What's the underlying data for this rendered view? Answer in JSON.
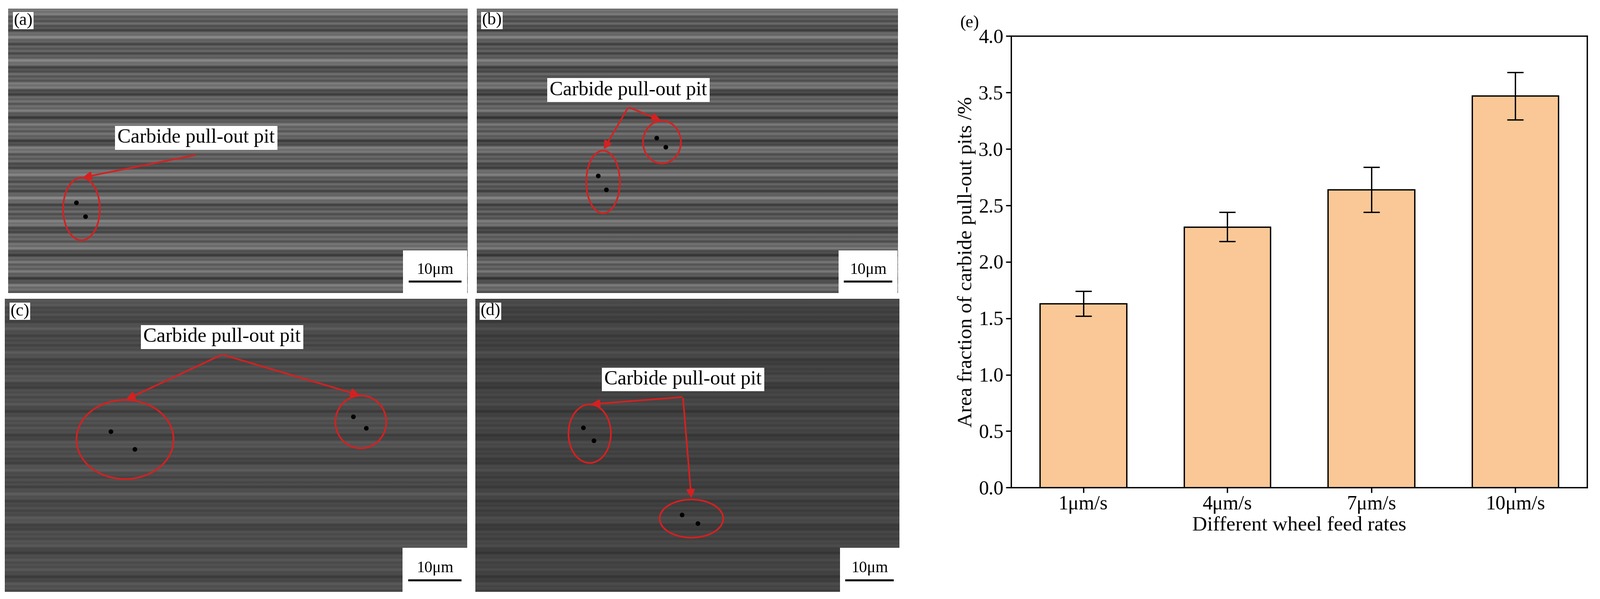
{
  "images": [
    {
      "label": "(a)",
      "annotation": "Carbide pull-out pit",
      "scale_bar": "10μm"
    },
    {
      "label": "(b)",
      "annotation": "Carbide pull-out pit",
      "scale_bar": "10μm"
    },
    {
      "label": "(c)",
      "annotation": "Carbide pull-out pit",
      "scale_bar": "10μm"
    },
    {
      "label": "(d)",
      "annotation": "Carbide pull-out pit",
      "scale_bar": "10μm"
    }
  ],
  "chart_data": {
    "type": "bar",
    "annotations": [
      "(e)"
    ],
    "x_label": "Different wheel feed rates",
    "y_label": "Area fraction of carbide pull-out pits /%",
    "categories": [
      "1μm/s",
      "4μm/s",
      "7μm/s",
      "10μm/s"
    ],
    "values": [
      1.63,
      2.31,
      2.64,
      3.47
    ],
    "errors": [
      0.11,
      0.13,
      0.2,
      0.21
    ],
    "color": "#f9c896",
    "ylim": [
      0,
      4.0
    ],
    "yticks": [
      {
        "value": 0,
        "label": "0.0"
      },
      0.5,
      {
        "value": 1.0,
        "label": "1.0"
      },
      1.5,
      {
        "value": 2.0,
        "label": "2.0"
      },
      2.5,
      {
        "value": 3.0,
        "label": "3.0"
      },
      3.5,
      {
        "value": 4.0,
        "label": "4.0"
      }
    ],
    "grid": false
  }
}
